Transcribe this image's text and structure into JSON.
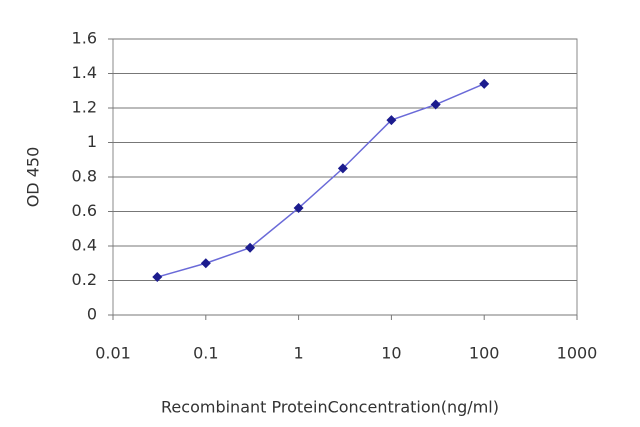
{
  "chart_data": {
    "type": "line",
    "xlabel": "Recombinant ProteinConcentration(ng/ml)",
    "ylabel": "OD 450",
    "x": [
      0.03,
      0.1,
      0.3,
      1,
      3,
      10,
      30,
      100
    ],
    "values": [
      0.22,
      0.3,
      0.39,
      0.62,
      0.85,
      1.13,
      1.22,
      1.34
    ],
    "color": "#6a6ad8",
    "marker_color": "#1c1c8e",
    "xscale": "log",
    "xlim": [
      0.01,
      1000
    ],
    "xticks": [
      0.01,
      0.1,
      1,
      10,
      100,
      1000
    ],
    "ylim": [
      0,
      1.6
    ],
    "yticks": [
      0,
      0.2,
      0.4,
      0.6,
      0.8,
      1,
      1.2,
      1.4,
      1.6
    ],
    "grid": true
  }
}
